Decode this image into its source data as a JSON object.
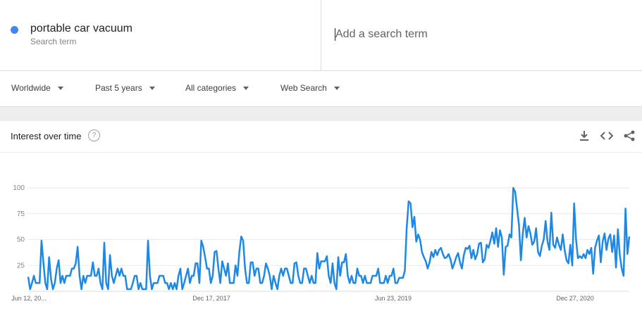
{
  "search": {
    "term": "portable car vacuum",
    "term_sub": "Search term",
    "term_color": "#4285f4",
    "add_placeholder": "Add a search term"
  },
  "filters": {
    "region": "Worldwide",
    "time": "Past 5 years",
    "category": "All categories",
    "source": "Web Search"
  },
  "card": {
    "title": "Interest over time",
    "help_glyph": "?",
    "icons": [
      "download-icon",
      "embed-icon",
      "share-icon"
    ]
  },
  "chart_data": {
    "type": "line",
    "title": "",
    "xlabel": "",
    "ylabel": "",
    "ylim": [
      0,
      100
    ],
    "yticks": [
      25,
      50,
      75,
      100
    ],
    "xtick_labels": [
      "Jun 12, 20...",
      "Dec 17, 2017",
      "Jun 23, 2019",
      "Dec 27, 2020"
    ],
    "grid": true,
    "line_color": "#1e88e5",
    "series": [
      {
        "name": "portable car vacuum",
        "values": [
          14,
          2,
          8,
          15,
          8,
          8,
          8,
          49,
          28,
          8,
          2,
          33,
          12,
          2,
          8,
          22,
          30,
          8,
          15,
          8,
          15,
          15,
          15,
          22,
          22,
          27,
          43,
          15,
          2,
          15,
          8,
          15,
          15,
          15,
          28,
          15,
          15,
          22,
          8,
          2,
          47,
          8,
          2,
          35,
          15,
          8,
          15,
          22,
          15,
          22,
          15,
          15,
          2,
          2,
          2,
          8,
          15,
          15,
          2,
          8,
          2,
          2,
          2,
          49,
          15,
          2,
          8,
          8,
          8,
          15,
          15,
          15,
          8,
          8,
          2,
          8,
          2,
          8,
          2,
          15,
          22,
          2,
          8,
          15,
          22,
          8,
          15,
          15,
          27,
          27,
          8,
          49,
          43,
          33,
          22,
          22,
          8,
          15,
          38,
          39,
          22,
          8,
          29,
          22,
          15,
          27,
          8,
          8,
          8,
          25,
          15,
          38,
          53,
          49,
          22,
          8,
          8,
          28,
          28,
          15,
          22,
          22,
          8,
          8,
          15,
          27,
          22,
          15,
          2,
          15,
          8,
          2,
          15,
          22,
          15,
          22,
          22,
          15,
          8,
          8,
          27,
          28,
          15,
          8,
          8,
          22,
          22,
          15,
          8,
          15,
          8,
          8,
          37,
          22,
          29,
          29,
          29,
          34,
          15,
          8,
          27,
          8,
          2,
          33,
          15,
          28,
          28,
          36,
          15,
          8,
          15,
          8,
          8,
          22,
          15,
          15,
          8,
          15,
          8,
          8,
          8,
          15,
          15,
          15,
          22,
          8,
          8,
          8,
          15,
          8,
          15,
          15,
          22,
          8,
          8,
          13,
          13,
          13,
          20,
          62,
          87,
          85,
          62,
          72,
          48,
          55,
          50,
          38,
          33,
          29,
          22,
          28,
          38,
          33,
          40,
          35,
          40,
          42,
          36,
          32,
          33,
          36,
          31,
          22,
          27,
          33,
          37,
          28,
          22,
          35,
          42,
          41,
          44,
          32,
          40,
          31,
          36,
          46,
          47,
          28,
          31,
          45,
          42,
          49,
          57,
          46,
          61,
          43,
          59,
          52,
          16,
          43,
          44,
          55,
          52,
          100,
          96,
          80,
          64,
          30,
          56,
          71,
          52,
          63,
          56,
          45,
          48,
          61,
          38,
          34,
          44,
          50,
          68,
          48,
          40,
          76,
          45,
          42,
          52,
          45,
          40,
          55,
          40,
          30,
          27,
          45,
          25,
          85,
          50,
          32,
          34,
          32,
          36,
          32,
          40,
          36,
          42,
          17,
          42,
          49,
          54,
          28,
          48,
          56,
          40,
          51,
          55,
          38,
          54,
          23,
          60,
          35,
          22,
          15,
          80,
          36,
          53
        ]
      }
    ]
  }
}
